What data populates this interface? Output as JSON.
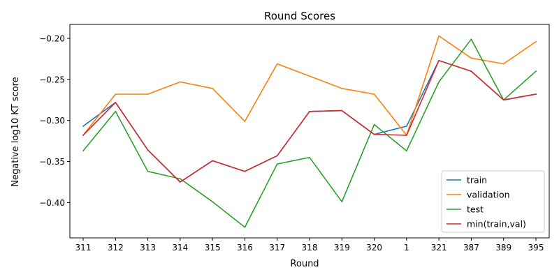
{
  "chart_data": {
    "type": "line",
    "title": "Round Scores",
    "xlabel": "Round",
    "ylabel": "Negative log10 KT score",
    "categories": [
      "311",
      "312",
      "313",
      "314",
      "315",
      "316",
      "317",
      "318",
      "319",
      "320",
      "1",
      "321",
      "387",
      "389",
      "395"
    ],
    "yticks": [
      -0.4,
      -0.35,
      -0.3,
      -0.25,
      -0.2
    ],
    "ytick_labels": [
      "−0.40",
      "−0.35",
      "−0.30",
      "−0.25",
      "−0.20"
    ],
    "ylim": [
      -0.443,
      -0.183
    ],
    "grid": false,
    "legend_position": "lower-right",
    "series": [
      {
        "name": "train",
        "color": "#1f77b4",
        "values": [
          -0.307,
          -0.278,
          -0.336,
          -0.375,
          -0.349,
          -0.362,
          -0.343,
          -0.289,
          -0.288,
          -0.317,
          -0.307,
          -0.227,
          -0.24,
          -0.275,
          -0.268
        ]
      },
      {
        "name": "validation",
        "color": "#ff7f0e",
        "values": [
          -0.318,
          -0.268,
          -0.268,
          -0.253,
          -0.261,
          -0.301,
          -0.231,
          -0.246,
          -0.261,
          -0.268,
          -0.318,
          -0.197,
          -0.224,
          -0.231,
          -0.204
        ]
      },
      {
        "name": "test",
        "color": "#2ca02c",
        "values": [
          -0.337,
          -0.289,
          -0.362,
          -0.371,
          -0.399,
          -0.43,
          -0.353,
          -0.345,
          -0.399,
          -0.305,
          -0.337,
          -0.253,
          -0.201,
          -0.275,
          -0.24
        ]
      },
      {
        "name": "min(train,val)",
        "color": "#d62728",
        "values": [
          -0.318,
          -0.278,
          -0.336,
          -0.375,
          -0.349,
          -0.362,
          -0.343,
          -0.289,
          -0.288,
          -0.317,
          -0.318,
          -0.227,
          -0.24,
          -0.275,
          -0.268
        ]
      }
    ]
  }
}
